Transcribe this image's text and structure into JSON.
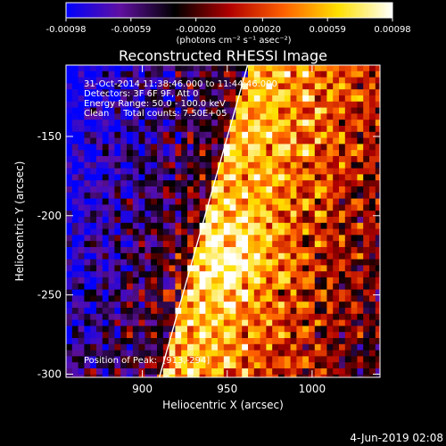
{
  "colorbar": {
    "tick_values": [
      -0.00098,
      -0.00059,
      -0.0002,
      0.0002,
      0.00059,
      0.00098
    ],
    "tick_labels": [
      "-0.00098",
      "-0.00059",
      "-0.00020",
      "0.00020",
      "0.00059",
      "0.00098"
    ],
    "unit_label": "(photons cm⁻² s⁻¹ asec⁻²)",
    "colors": [
      "#0000ff",
      "#6010a0",
      "#000000",
      "#b00000",
      "#ff6000",
      "#ffe000",
      "#ffffff"
    ]
  },
  "chart_data": {
    "type": "heatmap",
    "title": "Reconstructed RHESSI Image",
    "xlabel": "Heliocentric X (arcsec)",
    "ylabel": "Heliocentric Y (arcsec)",
    "xlim": [
      855,
      1040
    ],
    "ylim": [
      -302,
      -105
    ],
    "xticks": [
      900,
      950,
      1000
    ],
    "yticks": [
      -150,
      -200,
      -250,
      -300
    ],
    "limb_line": [
      [
        910,
        -302
      ],
      [
        962,
        -105
      ]
    ],
    "annotations": [
      "31-Oct-2014 11:38:46.000 to 11:44:46.000",
      "Detectors: 3F 6F 9F, Att 0",
      "Energy Range: 50.0 - 100.0 keV",
      "Clean     Total counts: 7.50E+05"
    ],
    "peak_label": "Position of Peak:  [913,-294]",
    "peak": [
      913,
      -294
    ]
  },
  "footer": {
    "date": "4-Jun-2019 02:08"
  }
}
